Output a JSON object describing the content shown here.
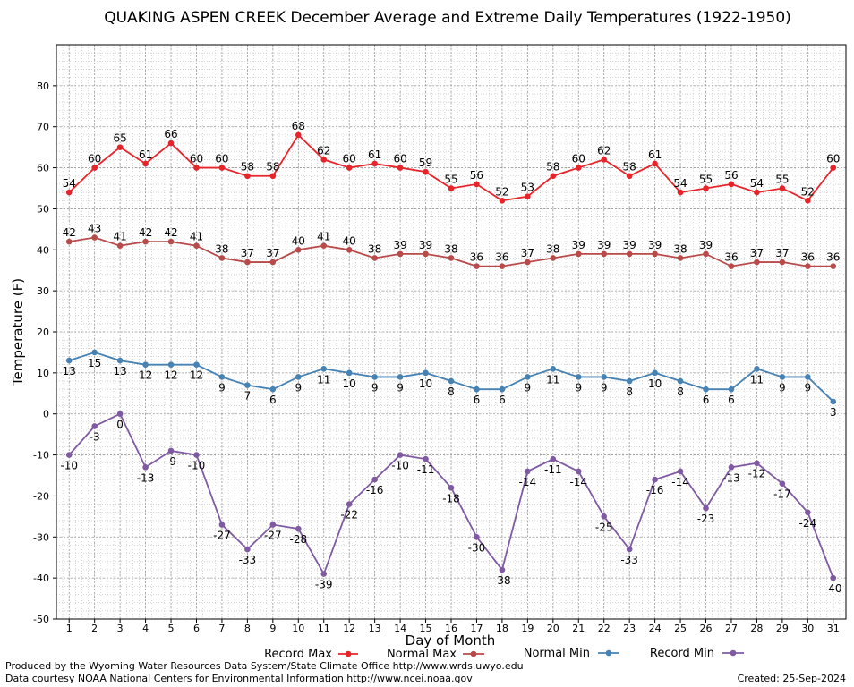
{
  "chart_data": {
    "type": "line",
    "title": "QUAKING ASPEN CREEK December Average and Extreme Daily Temperatures (1922-1950)",
    "xlabel": "Day of Month",
    "ylabel": "Temperature (F)",
    "ylim": [
      -50,
      90
    ],
    "yticks": [
      -50,
      -40,
      -30,
      -20,
      -10,
      0,
      10,
      20,
      30,
      40,
      50,
      60,
      70,
      80
    ],
    "xlim": [
      0.5,
      31.5
    ],
    "categories": [
      1,
      2,
      3,
      4,
      5,
      6,
      7,
      8,
      9,
      10,
      11,
      12,
      13,
      14,
      15,
      16,
      17,
      18,
      19,
      20,
      21,
      22,
      23,
      24,
      25,
      26,
      27,
      28,
      29,
      30,
      31
    ],
    "grid": true,
    "legend_position": "bottom",
    "series": [
      {
        "name": "Record Max",
        "color": "#e8242b",
        "label_position": "above",
        "values": [
          54,
          60,
          65,
          61,
          66,
          60,
          60,
          58,
          58,
          68,
          62,
          60,
          61,
          60,
          59,
          55,
          56,
          52,
          53,
          58,
          60,
          62,
          58,
          61,
          54,
          55,
          56,
          54,
          55,
          52,
          60
        ]
      },
      {
        "name": "Normal Max",
        "color": "#b84a4a",
        "label_position": "above",
        "values": [
          42,
          43,
          41,
          42,
          42,
          41,
          38,
          37,
          37,
          40,
          41,
          40,
          38,
          39,
          39,
          38,
          36,
          36,
          37,
          38,
          39,
          39,
          39,
          39,
          38,
          39,
          36,
          37,
          37,
          36,
          36
        ]
      },
      {
        "name": "Normal Min",
        "color": "#4682b4",
        "label_position": "below",
        "values": [
          13,
          15,
          13,
          12,
          12,
          12,
          9,
          7,
          6,
          9,
          11,
          10,
          9,
          9,
          10,
          8,
          6,
          6,
          9,
          11,
          9,
          9,
          8,
          10,
          8,
          6,
          6,
          11,
          9,
          9,
          3
        ]
      },
      {
        "name": "Record Min",
        "color": "#7f5aa2",
        "label_position": "below",
        "values": [
          -10,
          -3,
          0,
          -13,
          -9,
          -10,
          -27,
          -33,
          -27,
          -28,
          -39,
          -22,
          -16,
          -10,
          -11,
          -18,
          -30,
          -38,
          -14,
          -11,
          -14,
          -25,
          -33,
          -16,
          -14,
          -23,
          -13,
          -12,
          -17,
          -24,
          -40
        ]
      }
    ]
  },
  "footer": {
    "line1": "Produced by the Wyoming Water Resources Data System/State Climate Office http://www.wrds.uwyo.edu",
    "line2": "Data courtesy NOAA National Centers for Environmental Information http://www.ncei.noaa.gov",
    "created": "Created:  25-Sep-2024"
  }
}
